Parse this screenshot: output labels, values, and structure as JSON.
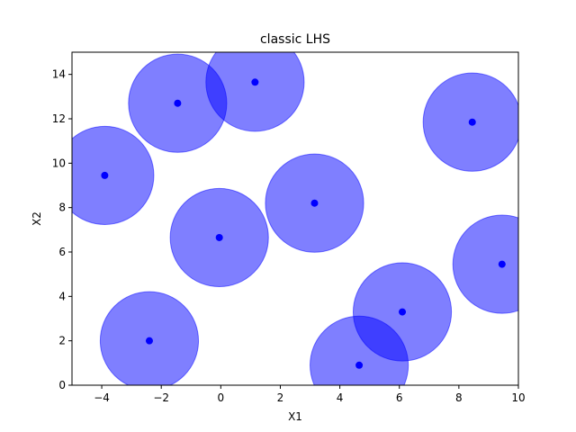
{
  "chart_data": {
    "type": "scatter",
    "title": "classic LHS",
    "xlabel": "X1",
    "ylabel": "X2",
    "xlim": [
      -5,
      10
    ],
    "ylim": [
      0,
      15
    ],
    "x_ticks": [
      -4,
      -2,
      0,
      2,
      4,
      6,
      8,
      10
    ],
    "y_ticks": [
      0,
      2,
      4,
      6,
      8,
      10,
      12,
      14
    ],
    "grid": false,
    "legend": false,
    "color": "#0000ff",
    "circle_radius": 1.65,
    "circle_alpha": 0.5,
    "points": [
      {
        "x": -3.9,
        "y": 9.45
      },
      {
        "x": -2.4,
        "y": 2.0
      },
      {
        "x": -1.45,
        "y": 12.7
      },
      {
        "x": -0.05,
        "y": 6.65
      },
      {
        "x": 1.15,
        "y": 13.65
      },
      {
        "x": 3.15,
        "y": 8.2
      },
      {
        "x": 4.65,
        "y": 0.9
      },
      {
        "x": 6.1,
        "y": 3.3
      },
      {
        "x": 8.45,
        "y": 11.85
      },
      {
        "x": 9.45,
        "y": 5.45
      }
    ]
  }
}
